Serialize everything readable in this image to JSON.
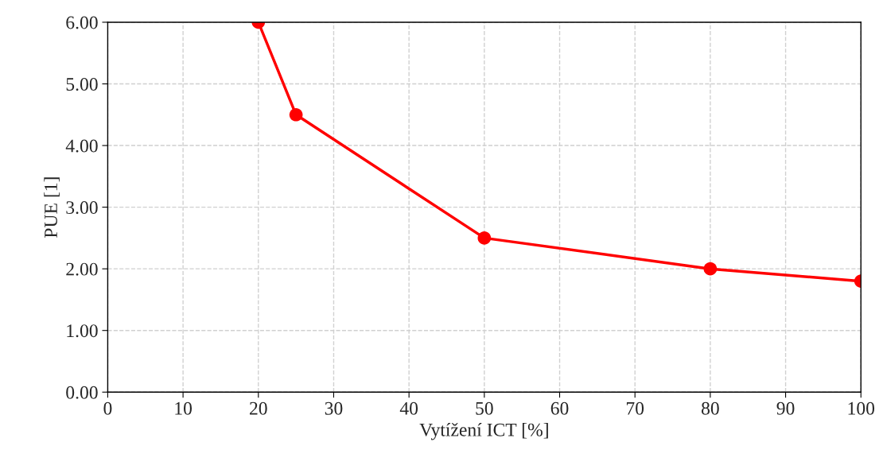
{
  "chart_data": {
    "type": "line",
    "xlabel": "Vytížení ICT [%]",
    "ylabel": "PUE [1]",
    "x": [
      20,
      25,
      50,
      80,
      100
    ],
    "series": [
      {
        "color": "#ff0000",
        "values": [
          6.0,
          4.5,
          2.5,
          2.0,
          1.8
        ]
      }
    ],
    "xlim": [
      0,
      100
    ],
    "xticks": [
      0,
      10,
      20,
      30,
      40,
      50,
      60,
      70,
      80,
      90,
      100
    ],
    "ylim": [
      0,
      6
    ],
    "yticks": [
      {
        "value": 0,
        "label": "0.00"
      },
      {
        "value": 1,
        "label": "1.00"
      },
      {
        "value": 2,
        "label": "2.00"
      },
      {
        "value": 3,
        "label": "3.00"
      },
      {
        "value": 4,
        "label": "4.00"
      },
      {
        "value": 5,
        "label": "5.00"
      },
      {
        "value": 6,
        "label": "6.00"
      }
    ],
    "grid": true,
    "marker": "circle",
    "line_style": "solid",
    "legend": false
  }
}
